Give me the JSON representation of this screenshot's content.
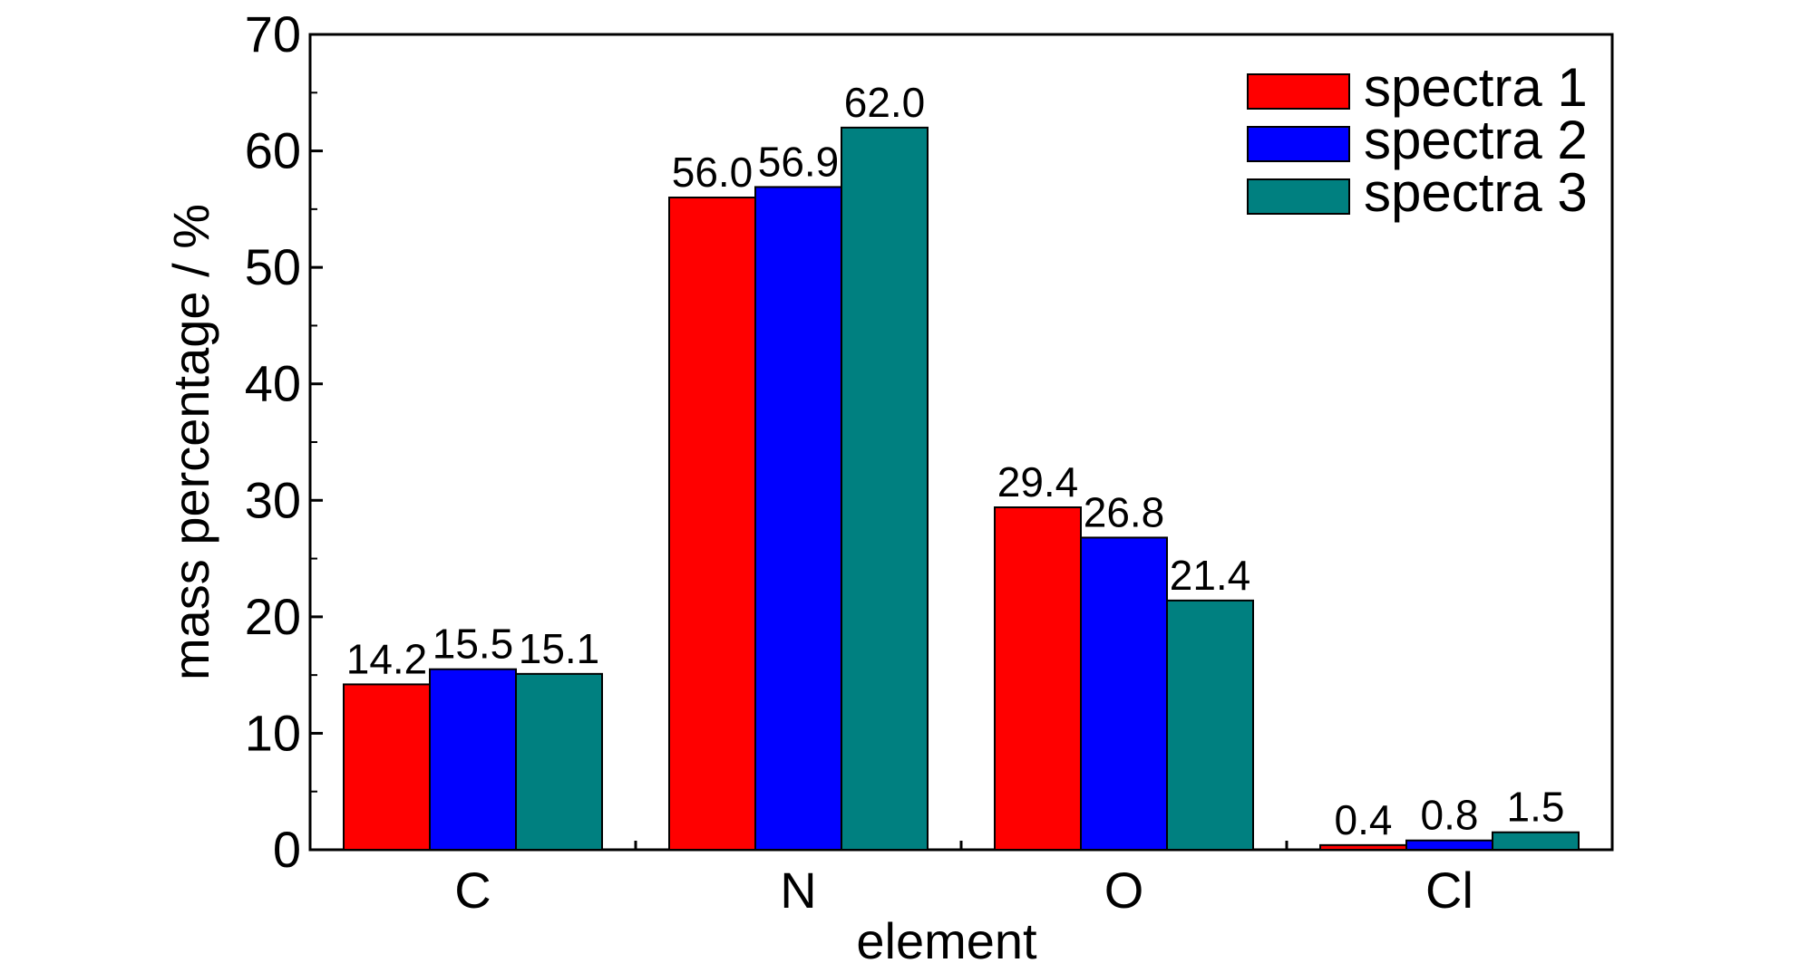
{
  "chart_data": {
    "type": "bar",
    "title": "",
    "xlabel": "element",
    "ylabel": "mass percentage / %",
    "ylim": [
      0,
      70
    ],
    "yticks": [
      0,
      10,
      20,
      30,
      40,
      50,
      60,
      70
    ],
    "categories": [
      "C",
      "N",
      "O",
      "Cl"
    ],
    "series": [
      {
        "name": "spectra 1",
        "color": "#ff0000",
        "values": [
          14.2,
          56.0,
          29.4,
          0.4
        ],
        "labels": [
          "14.2",
          "56.0",
          "29.4",
          "0.4"
        ]
      },
      {
        "name": "spectra 2",
        "color": "#0000ff",
        "values": [
          15.5,
          56.9,
          26.8,
          0.8
        ],
        "labels": [
          "15.5",
          "56.9",
          "26.8",
          "0.8"
        ]
      },
      {
        "name": "spectra 3",
        "color": "#008080",
        "values": [
          15.1,
          62.0,
          21.4,
          1.5
        ],
        "labels": [
          "15.1",
          "62.0",
          "21.4",
          "1.5"
        ]
      }
    ],
    "legend_position": "top-right",
    "grid": false
  }
}
